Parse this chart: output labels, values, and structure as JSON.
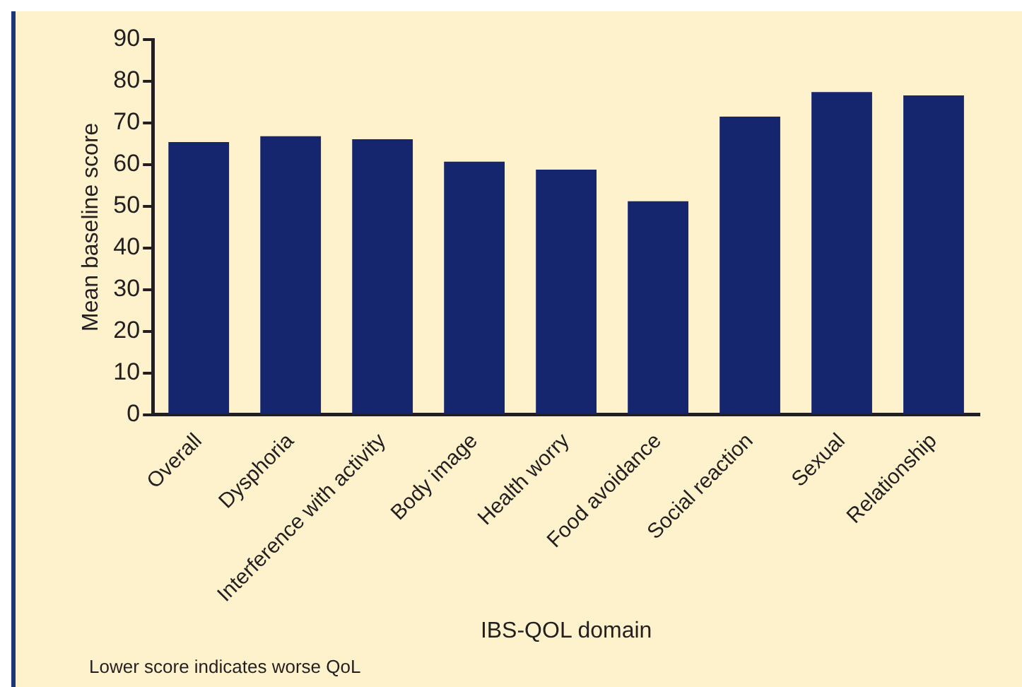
{
  "chart_data": {
    "type": "bar",
    "xlabel": "IBS-QOL domain",
    "ylabel": "Mean baseline score",
    "categories": [
      "Overall",
      "Dysphoria",
      "Interference with activity",
      "Body image",
      "Health worry",
      "Food avoidance",
      "Social reaction",
      "Sexual",
      "Relationship"
    ],
    "values": [
      65.4,
      66.8,
      66.1,
      60.7,
      58.8,
      51.2,
      71.5,
      77.4,
      76.6
    ],
    "color": "#15266f",
    "ylim": [
      0,
      90
    ],
    "yticks": [
      0,
      10,
      20,
      30,
      40,
      50,
      60,
      70,
      80,
      90
    ],
    "grid": false,
    "annotations": [
      "Lower score indicates worse QoL"
    ]
  }
}
